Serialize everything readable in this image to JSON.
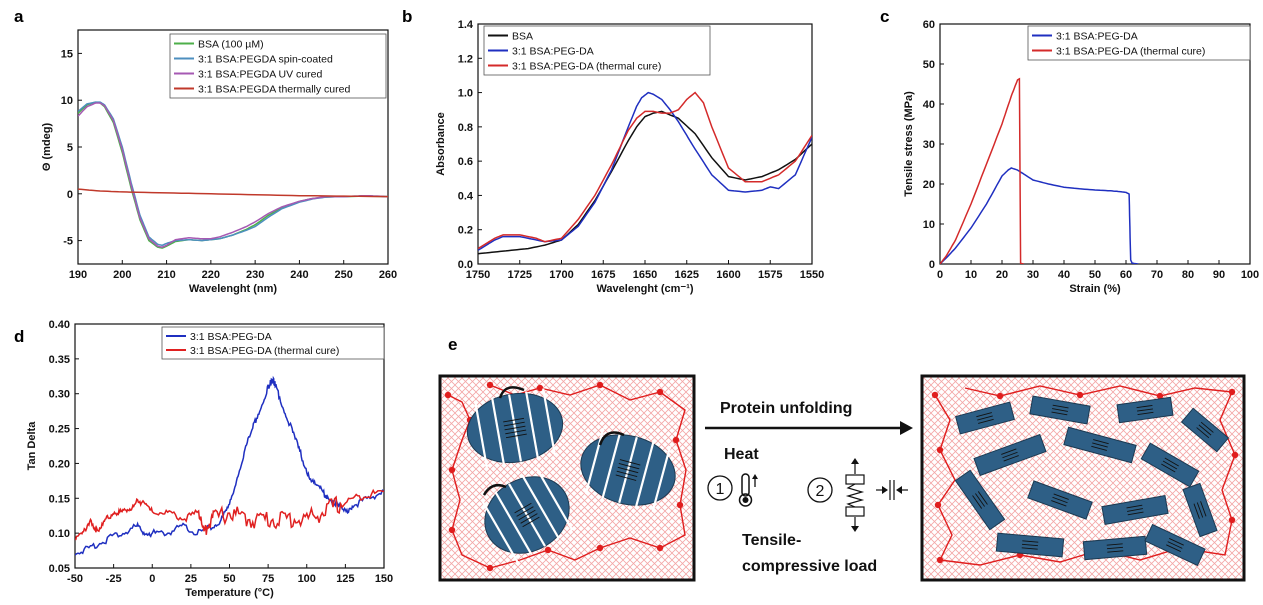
{
  "chart_data": [
    {
      "panel": "a",
      "type": "line",
      "xlabel": "Wavelenght (nm)",
      "ylabel": "Θ (mdeg)",
      "xlim": [
        190,
        260
      ],
      "ylim": [
        -7.5,
        17.5
      ],
      "xticks": [
        190,
        200,
        210,
        220,
        230,
        240,
        250,
        260
      ],
      "yticks": [
        -5,
        0,
        5,
        10,
        15
      ],
      "legend_position": "top-right",
      "series": [
        {
          "name": "BSA (100 µM)",
          "color": "#4daf4a",
          "x": [
            190,
            192,
            194,
            195,
            196,
            198,
            200,
            202,
            204,
            206,
            208,
            209,
            210,
            212,
            215,
            218,
            220,
            222,
            225,
            228,
            230,
            233,
            236,
            240,
            243,
            246,
            250,
            255,
            260
          ],
          "y": [
            8.6,
            9.5,
            9.8,
            9.7,
            9.3,
            7.6,
            4.4,
            0.6,
            -2.8,
            -5.0,
            -5.7,
            -5.8,
            -5.6,
            -5.1,
            -4.9,
            -5.0,
            -4.9,
            -4.8,
            -4.4,
            -3.8,
            -3.3,
            -2.3,
            -1.5,
            -0.8,
            -0.5,
            -0.35,
            -0.3,
            -0.25,
            -0.3
          ]
        },
        {
          "name": "3:1 BSA:PEGDA spin-coated",
          "color": "#4d8fbf",
          "x": [
            190,
            192,
            194,
            195,
            196,
            198,
            200,
            202,
            204,
            206,
            208,
            209,
            210,
            212,
            215,
            218,
            220,
            222,
            225,
            228,
            230,
            233,
            236,
            240,
            243,
            246,
            250,
            255,
            260
          ],
          "y": [
            8.8,
            9.6,
            9.8,
            9.8,
            9.5,
            8.0,
            5.0,
            1.2,
            -2.3,
            -4.6,
            -5.4,
            -5.5,
            -5.3,
            -5.0,
            -4.9,
            -5.0,
            -4.9,
            -4.8,
            -4.4,
            -3.9,
            -3.5,
            -2.5,
            -1.6,
            -0.9,
            -0.55,
            -0.35,
            -0.3,
            -0.2,
            -0.3
          ]
        },
        {
          "name": "3:1 BSA:PEGDA UV cured",
          "color": "#a659b3",
          "x": [
            190,
            192,
            194,
            195,
            196,
            198,
            200,
            202,
            204,
            206,
            208,
            209,
            210,
            212,
            215,
            218,
            220,
            222,
            225,
            228,
            230,
            233,
            236,
            240,
            243,
            246,
            250,
            255,
            260
          ],
          "y": [
            8.3,
            9.3,
            9.7,
            9.7,
            9.4,
            7.8,
            4.7,
            0.9,
            -2.6,
            -4.8,
            -5.6,
            -5.7,
            -5.5,
            -4.9,
            -4.7,
            -4.8,
            -4.8,
            -4.6,
            -4.1,
            -3.5,
            -3.0,
            -2.1,
            -1.4,
            -0.8,
            -0.5,
            -0.3,
            -0.3,
            -0.2,
            -0.3
          ]
        },
        {
          "name": "3:1 BSA:PEGDA thermally cured",
          "color": "#c0392b",
          "x": [
            190,
            195,
            200,
            210,
            220,
            230,
            240,
            250,
            260
          ],
          "y": [
            0.5,
            0.3,
            0.2,
            0.1,
            0.0,
            -0.1,
            -0.2,
            -0.25,
            -0.3
          ]
        }
      ]
    },
    {
      "panel": "b",
      "type": "line",
      "xlabel": "Wavelenght (cm⁻¹)",
      "ylabel": "Absorbance",
      "xlim": [
        1750,
        1550
      ],
      "ylim": [
        0.0,
        1.4
      ],
      "xticks": [
        1750,
        1725,
        1700,
        1675,
        1650,
        1625,
        1600,
        1575,
        1550
      ],
      "yticks": [
        0.0,
        0.2,
        0.4,
        0.6,
        0.8,
        1.0,
        1.2,
        1.4
      ],
      "legend_position": "top-left",
      "series": [
        {
          "name": "BSA",
          "color": "#111111",
          "x": [
            1750,
            1740,
            1730,
            1720,
            1710,
            1700,
            1690,
            1680,
            1670,
            1660,
            1655,
            1650,
            1645,
            1640,
            1630,
            1620,
            1610,
            1600,
            1590,
            1580,
            1570,
            1560,
            1550
          ],
          "y": [
            0.06,
            0.07,
            0.08,
            0.09,
            0.11,
            0.14,
            0.23,
            0.37,
            0.54,
            0.72,
            0.8,
            0.86,
            0.88,
            0.89,
            0.85,
            0.76,
            0.62,
            0.51,
            0.49,
            0.51,
            0.55,
            0.61,
            0.7
          ]
        },
        {
          "name": "3:1 BSA:PEG-DA",
          "color": "#1f2fc0",
          "x": [
            1750,
            1745,
            1740,
            1735,
            1730,
            1725,
            1720,
            1715,
            1710,
            1700,
            1690,
            1680,
            1670,
            1660,
            1655,
            1652,
            1648,
            1645,
            1640,
            1635,
            1630,
            1625,
            1620,
            1610,
            1600,
            1590,
            1580,
            1575,
            1570,
            1560,
            1550
          ],
          "y": [
            0.08,
            0.11,
            0.14,
            0.16,
            0.16,
            0.16,
            0.15,
            0.14,
            0.13,
            0.14,
            0.22,
            0.36,
            0.55,
            0.8,
            0.92,
            0.97,
            1.0,
            0.99,
            0.96,
            0.9,
            0.83,
            0.75,
            0.67,
            0.52,
            0.43,
            0.42,
            0.43,
            0.45,
            0.44,
            0.52,
            0.74
          ]
        },
        {
          "name": "3:1 BSA:PEG-DA (thermal cure)",
          "color": "#d42a2a",
          "x": [
            1750,
            1745,
            1740,
            1735,
            1730,
            1725,
            1720,
            1715,
            1710,
            1700,
            1690,
            1680,
            1670,
            1660,
            1655,
            1650,
            1645,
            1640,
            1635,
            1630,
            1625,
            1620,
            1615,
            1610,
            1600,
            1590,
            1580,
            1570,
            1560,
            1550
          ],
          "y": [
            0.09,
            0.12,
            0.15,
            0.17,
            0.17,
            0.17,
            0.16,
            0.15,
            0.13,
            0.15,
            0.26,
            0.4,
            0.58,
            0.78,
            0.85,
            0.89,
            0.89,
            0.88,
            0.88,
            0.9,
            0.96,
            1.0,
            0.94,
            0.8,
            0.56,
            0.48,
            0.48,
            0.52,
            0.6,
            0.75
          ]
        }
      ]
    },
    {
      "panel": "c",
      "type": "line",
      "xlabel": "Strain (%)",
      "ylabel": "Tensile stress (MPa)",
      "xlim": [
        0,
        100
      ],
      "ylim": [
        0,
        60
      ],
      "xticks": [
        0,
        10,
        20,
        30,
        40,
        50,
        60,
        70,
        80,
        90,
        100
      ],
      "yticks": [
        0,
        10,
        20,
        30,
        40,
        50,
        60
      ],
      "legend_position": "top-right",
      "series": [
        {
          "name": "3:1 BSA:PEG-DA",
          "color": "#1f2fc0",
          "x": [
            0,
            2,
            5,
            10,
            15,
            20,
            22,
            23,
            25,
            27,
            30,
            35,
            40,
            45,
            50,
            55,
            58,
            60,
            61,
            61.5,
            62,
            64
          ],
          "y": [
            0,
            1.5,
            4,
            9,
            15,
            22,
            23.5,
            24,
            23.5,
            22.5,
            21,
            20,
            19.2,
            18.8,
            18.5,
            18.3,
            18.1,
            17.9,
            17.5,
            1.0,
            0.2,
            0
          ]
        },
        {
          "name": "3:1 BSA:PEG-DA (thermal cure)",
          "color": "#d42a2a",
          "x": [
            0,
            2,
            5,
            10,
            15,
            20,
            23,
            25,
            25.6,
            26,
            27
          ],
          "y": [
            0,
            2,
            6,
            15,
            25,
            35,
            42,
            46,
            46.3,
            0.2,
            0
          ]
        }
      ]
    },
    {
      "panel": "d",
      "type": "line",
      "xlabel": "Temperature (°C)",
      "ylabel": "Tan Delta",
      "xlim": [
        -50,
        150
      ],
      "ylim": [
        0.05,
        0.4
      ],
      "xticks": [
        -50,
        -25,
        0,
        25,
        50,
        75,
        100,
        125,
        150
      ],
      "yticks": [
        0.05,
        0.1,
        0.15,
        0.2,
        0.25,
        0.3,
        0.35,
        0.4
      ],
      "legend_position": "top-center",
      "series": [
        {
          "name": "3:1 BSA:PEG-DA",
          "color": "#1f2fc0",
          "x": [
            -50,
            -40,
            -30,
            -20,
            -10,
            -5,
            0,
            10,
            20,
            30,
            40,
            45,
            50,
            55,
            60,
            65,
            70,
            75,
            78,
            80,
            85,
            90,
            95,
            100,
            105,
            110,
            115,
            120,
            125,
            130,
            140,
            150
          ],
          "y": [
            0.07,
            0.08,
            0.09,
            0.1,
            0.11,
            0.1,
            0.1,
            0.1,
            0.11,
            0.1,
            0.11,
            0.12,
            0.14,
            0.18,
            0.22,
            0.25,
            0.28,
            0.31,
            0.32,
            0.31,
            0.28,
            0.25,
            0.22,
            0.19,
            0.17,
            0.16,
            0.15,
            0.14,
            0.13,
            0.14,
            0.15,
            0.16
          ]
        },
        {
          "name": "3:1 BSA:PEG-DA (thermal cure)",
          "color": "#e02020",
          "x": [
            -50,
            -45,
            -40,
            -35,
            -30,
            -25,
            -20,
            -15,
            -10,
            -5,
            0,
            10,
            20,
            30,
            35,
            40,
            50,
            60,
            70,
            80,
            90,
            100,
            110,
            120,
            130,
            140,
            150
          ],
          "y": [
            0.09,
            0.1,
            0.12,
            0.1,
            0.12,
            0.13,
            0.13,
            0.13,
            0.15,
            0.14,
            0.13,
            0.13,
            0.12,
            0.13,
            0.11,
            0.12,
            0.13,
            0.12,
            0.12,
            0.12,
            0.12,
            0.12,
            0.13,
            0.14,
            0.15,
            0.155,
            0.16
          ]
        }
      ]
    }
  ],
  "panel_labels": {
    "a": "a",
    "b": "b",
    "c": "c",
    "d": "d",
    "e": "e"
  },
  "schematic": {
    "arrow_label": "Protein unfolding",
    "step1_number": "1",
    "step1_label": "Heat",
    "step2_number": "2",
    "load_label_line1": "Tensile-",
    "load_label_line2": "compressive load",
    "colors": {
      "protein": "#2e5f86",
      "crosslink": "#e01e1e",
      "mesh": "#f3a6a6",
      "linker": "#111111"
    }
  }
}
